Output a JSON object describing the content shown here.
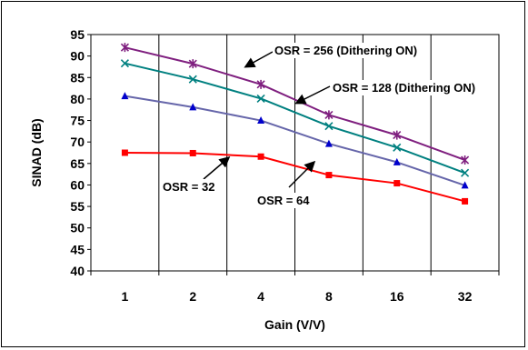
{
  "chart_data": {
    "type": "line",
    "title": "",
    "xlabel": "Gain (V/V)",
    "ylabel": "SINAD (dB)",
    "categories": [
      "1",
      "2",
      "4",
      "8",
      "16",
      "32"
    ],
    "ylim": [
      40,
      95
    ],
    "yticks": [
      40,
      45,
      50,
      55,
      60,
      65,
      70,
      75,
      80,
      85,
      90,
      95
    ],
    "grid": "vertical",
    "series": [
      {
        "id": "s256",
        "values": [
          92.0,
          88.2,
          83.4,
          76.3,
          71.6,
          65.8
        ],
        "color": "#7f1f7f",
        "marker": "star"
      },
      {
        "id": "s128",
        "values": [
          88.3,
          84.6,
          80.1,
          73.7,
          68.7,
          62.8
        ],
        "color": "#008080",
        "marker": "x"
      },
      {
        "id": "s64",
        "values": [
          80.7,
          78.1,
          75.0,
          69.6,
          65.3,
          59.9
        ],
        "color": "#6666aa",
        "marker": "triangle",
        "marker_color": "#0000cc"
      },
      {
        "id": "s32",
        "values": [
          67.5,
          67.4,
          66.6,
          62.3,
          60.4,
          56.2
        ],
        "color": "#ff0000",
        "marker": "square"
      }
    ],
    "annotations": [
      {
        "text": "OSR = 256 (Dithering ON)",
        "series": "s256"
      },
      {
        "text": "OSR = 128 (Dithering ON)",
        "series": "s128"
      },
      {
        "text": "OSR = 64",
        "series": "s64"
      },
      {
        "text": "OSR = 32",
        "series": "s32"
      }
    ]
  }
}
